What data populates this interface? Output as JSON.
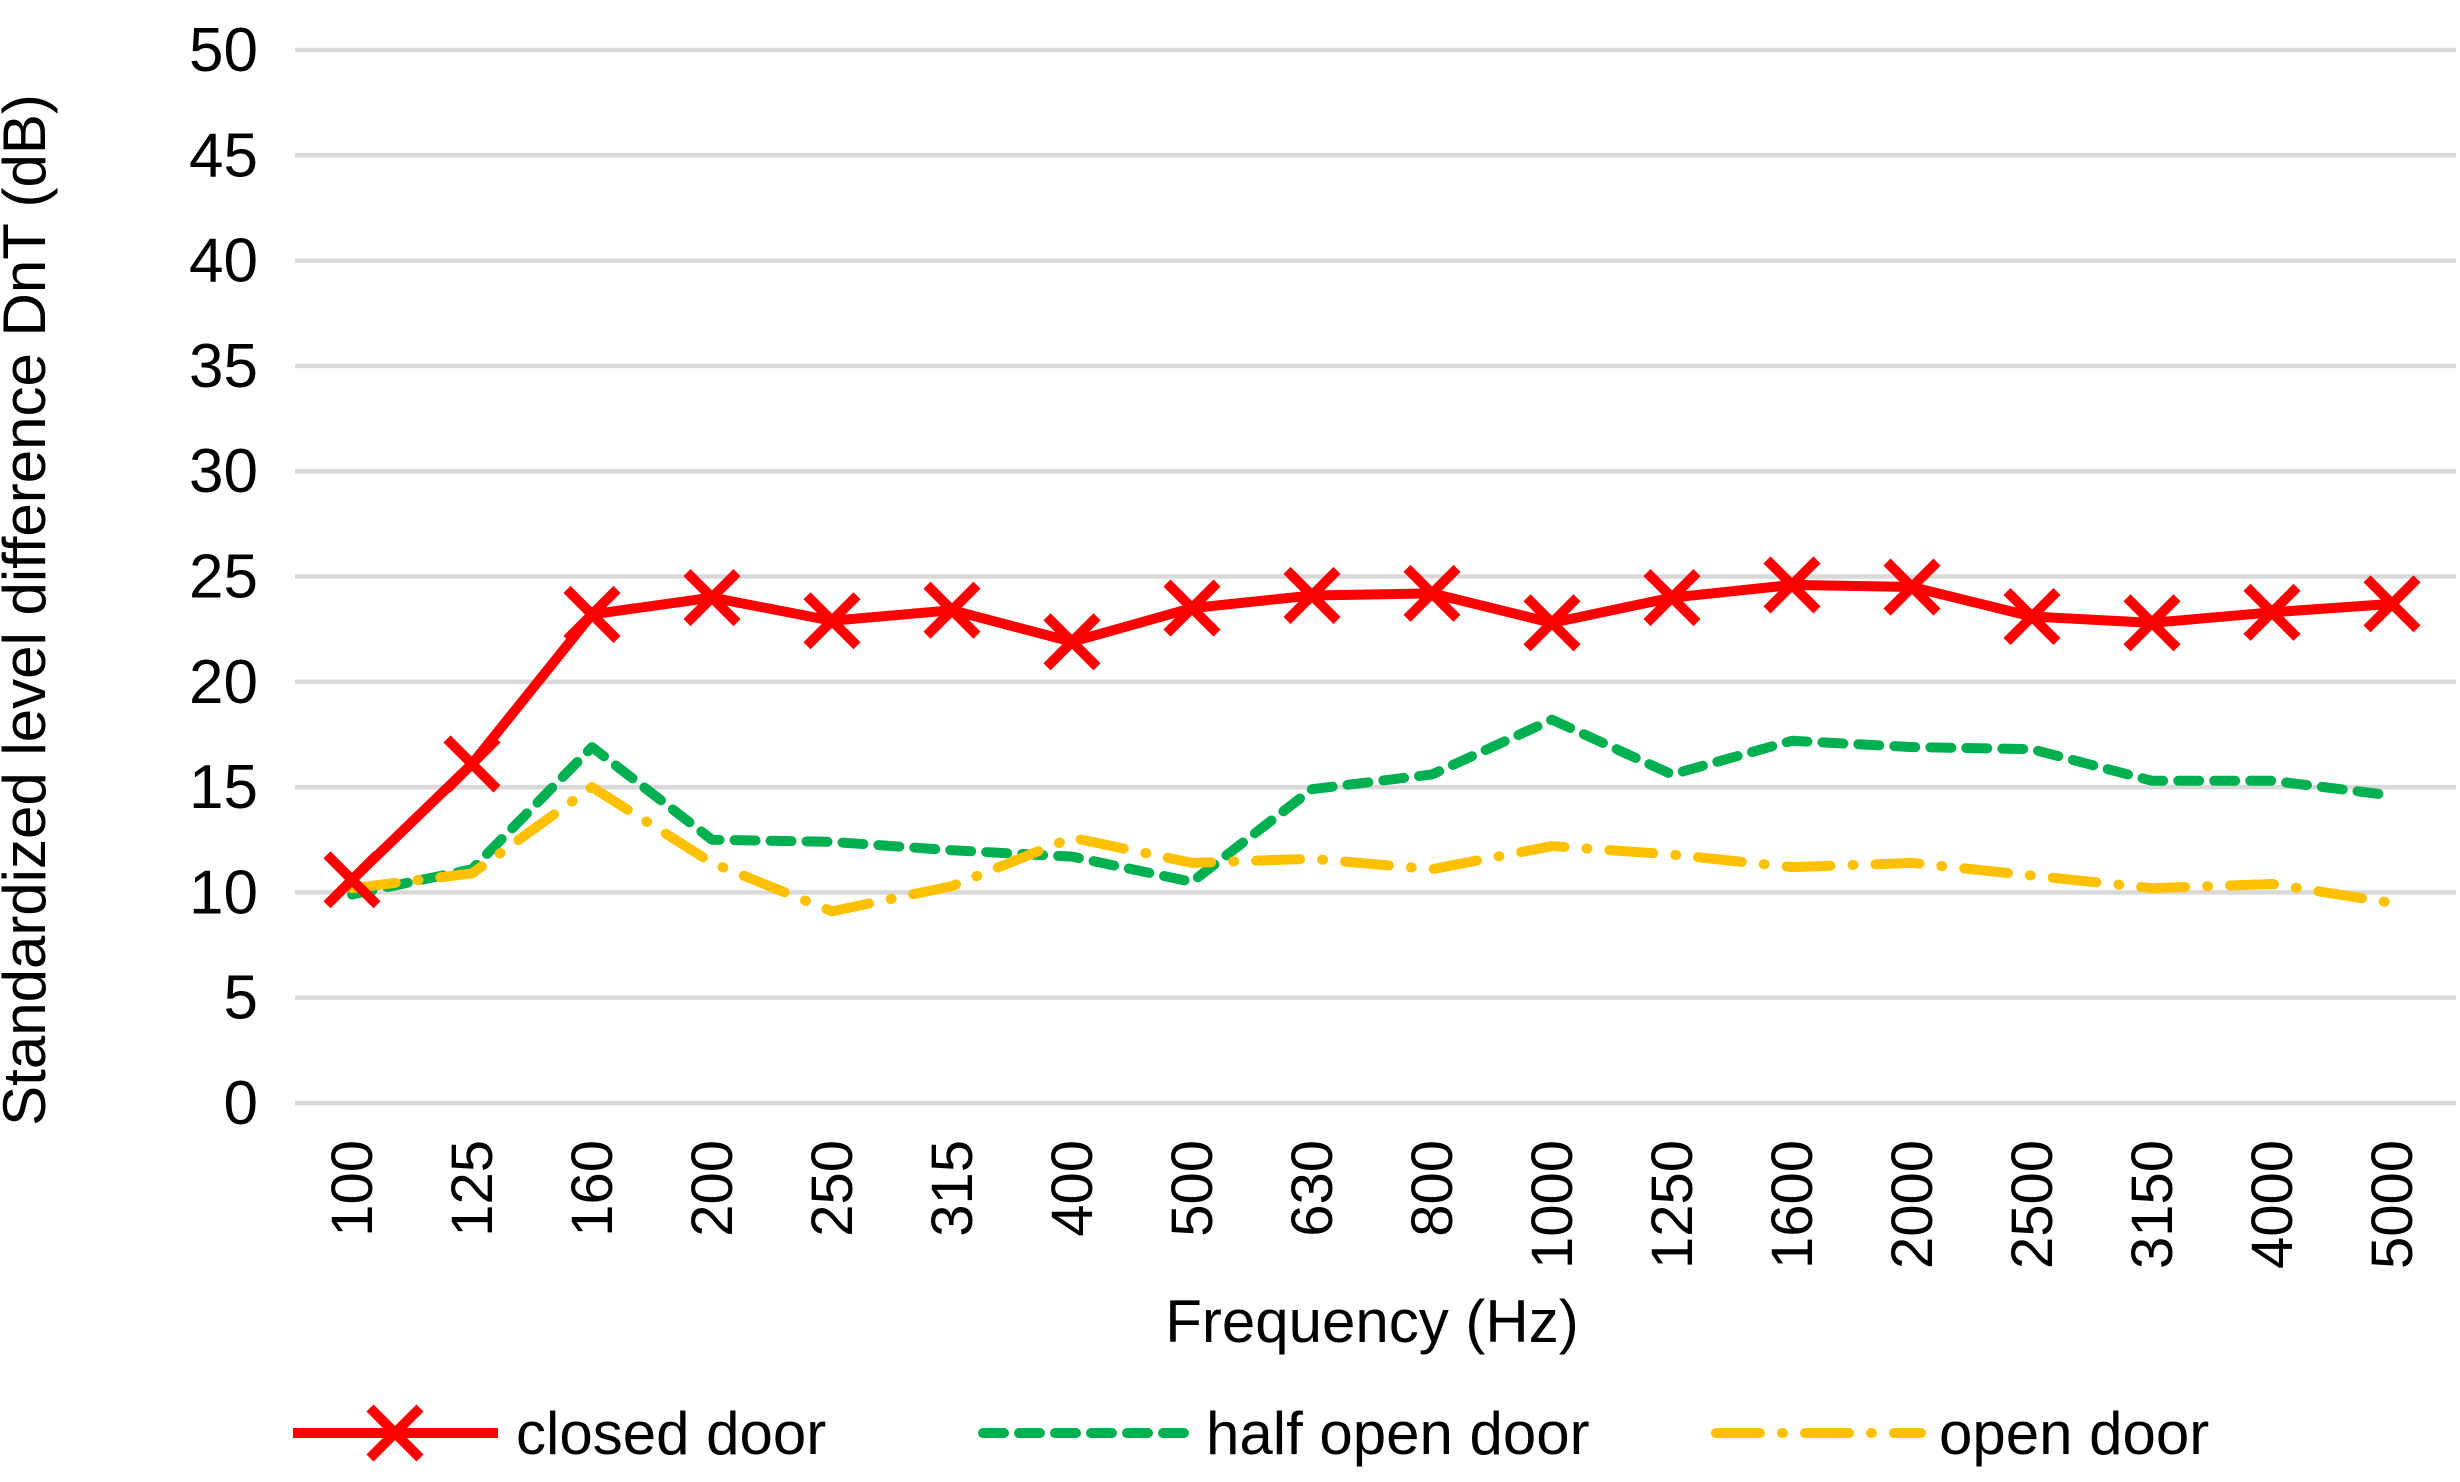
{
  "chart_data": {
    "type": "line",
    "title": "",
    "xlabel": "Frequency (Hz)",
    "ylabel": "Standardized level difference DnT (dB)",
    "categories": [
      "100",
      "125",
      "160",
      "200",
      "250",
      "315",
      "400",
      "500",
      "630",
      "800",
      "1000",
      "1250",
      "1600",
      "2000",
      "2500",
      "3150",
      "4000",
      "5000"
    ],
    "ylim": [
      0,
      50
    ],
    "yticks": [
      0,
      5,
      10,
      15,
      20,
      25,
      30,
      35,
      40,
      45,
      50
    ],
    "grid": "horizontal",
    "legend_position": "bottom",
    "colors": {
      "background": "#FFFFFF",
      "gridline": "#D9D9D9",
      "text": "#000000"
    },
    "series": [
      {
        "name": "closed door",
        "color": "#FF0000",
        "style": "solid",
        "marker": "x",
        "values": [
          10.6,
          16.1,
          23.2,
          24.0,
          22.9,
          23.4,
          21.9,
          23.5,
          24.1,
          24.2,
          22.8,
          24.0,
          24.6,
          24.5,
          23.1,
          22.8,
          23.3,
          23.7
        ]
      },
      {
        "name": "half open door",
        "color": "#00B050",
        "style": "dashed",
        "marker": "none",
        "values": [
          9.9,
          11.1,
          16.9,
          12.5,
          12.4,
          12.0,
          11.7,
          10.5,
          14.9,
          15.6,
          18.2,
          15.6,
          17.2,
          16.9,
          16.8,
          15.3,
          15.3,
          14.6
        ]
      },
      {
        "name": "open door",
        "color": "#FFC000",
        "style": "dashdot",
        "marker": "none",
        "values": [
          10.2,
          10.9,
          15.0,
          11.4,
          9.1,
          10.3,
          12.6,
          11.4,
          11.6,
          11.1,
          12.2,
          11.8,
          11.2,
          11.4,
          10.8,
          10.2,
          10.4,
          9.5
        ]
      }
    ]
  }
}
